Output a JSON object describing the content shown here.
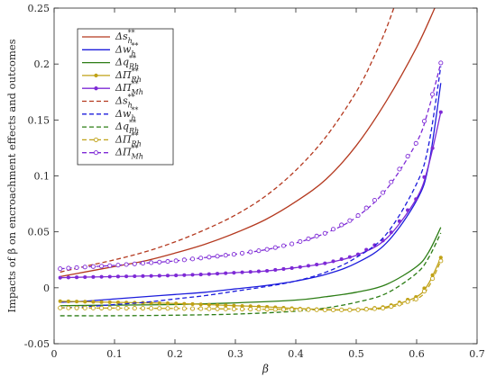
{
  "chart_data": {
    "type": "line",
    "xlabel": "β",
    "ylabel": "Impacts of β on encroachment effects and outcomes",
    "xlim": [
      0,
      0.7
    ],
    "ylim": [
      -0.05,
      0.25
    ],
    "xticks": [
      "0",
      "0.1",
      "0.2",
      "0.3",
      "0.4",
      "0.5",
      "0.6",
      "0.7"
    ],
    "yticks": [
      "-0.05",
      "0",
      "0.05",
      "0.1",
      "0.15",
      "0.2",
      "0.25"
    ],
    "grid": false,
    "legend_position": "top-left",
    "colors": {
      "red": "#b4391f",
      "blue": "#1c1cdc",
      "green": "#2c7d15",
      "gold": "#c0a217",
      "purple": "#7e2ad6"
    },
    "series": [
      {
        "name": "Δs_h^{**}",
        "color": "red",
        "style": "solid",
        "marker": "none",
        "x": [
          0.01,
          0.05,
          0.1,
          0.15,
          0.2,
          0.25,
          0.3,
          0.35,
          0.4,
          0.45,
          0.5,
          0.55,
          0.6,
          0.63,
          0.645
        ],
        "y": [
          0.01,
          0.014,
          0.019,
          0.024,
          0.031,
          0.039,
          0.049,
          0.061,
          0.077,
          0.097,
          0.127,
          0.167,
          0.215,
          0.25,
          0.268
        ]
      },
      {
        "name": "Δw_h^{**}",
        "color": "blue",
        "style": "solid",
        "marker": "none",
        "x": [
          0.01,
          0.05,
          0.1,
          0.15,
          0.2,
          0.25,
          0.3,
          0.35,
          0.4,
          0.45,
          0.5,
          0.55,
          0.6,
          0.62,
          0.64
        ],
        "y": [
          -0.013,
          -0.012,
          -0.01,
          -0.008,
          -0.006,
          -0.004,
          -0.001,
          0.002,
          0.006,
          0.012,
          0.022,
          0.04,
          0.078,
          0.11,
          0.183
        ]
      },
      {
        "name": "Δq_Rh^{**}",
        "color": "green",
        "style": "solid",
        "marker": "none",
        "x": [
          0.01,
          0.1,
          0.2,
          0.3,
          0.4,
          0.45,
          0.5,
          0.55,
          0.6,
          0.62,
          0.64
        ],
        "y": [
          -0.016,
          -0.0155,
          -0.015,
          -0.0135,
          -0.011,
          -0.008,
          -0.004,
          0.003,
          0.019,
          0.032,
          0.054
        ]
      },
      {
        "name": "ΔΠ_Rh^{**}",
        "color": "gold",
        "style": "solid",
        "marker": "dot",
        "x": [
          0.01,
          0.1,
          0.2,
          0.3,
          0.35,
          0.4,
          0.45,
          0.5,
          0.55,
          0.6,
          0.62,
          0.64
        ],
        "y": [
          -0.012,
          -0.013,
          -0.014,
          -0.016,
          -0.017,
          -0.0185,
          -0.0195,
          -0.0195,
          -0.017,
          -0.008,
          0.004,
          0.027
        ]
      },
      {
        "name": "ΔΠ_Mh^{**}",
        "color": "purple",
        "style": "solid",
        "marker": "dot",
        "x": [
          0.01,
          0.05,
          0.1,
          0.15,
          0.2,
          0.25,
          0.3,
          0.35,
          0.4,
          0.45,
          0.5,
          0.55,
          0.6,
          0.62,
          0.64
        ],
        "y": [
          0.009,
          0.0095,
          0.01,
          0.0105,
          0.011,
          0.012,
          0.0135,
          0.015,
          0.018,
          0.022,
          0.029,
          0.044,
          0.08,
          0.11,
          0.157
        ]
      },
      {
        "name": "Δs_h^{**}",
        "color": "red",
        "style": "dashed",
        "marker": "none",
        "x": [
          0.01,
          0.05,
          0.1,
          0.15,
          0.2,
          0.25,
          0.3,
          0.35,
          0.4,
          0.45,
          0.5,
          0.53,
          0.55,
          0.57
        ],
        "y": [
          0.014,
          0.019,
          0.025,
          0.032,
          0.041,
          0.052,
          0.065,
          0.082,
          0.105,
          0.135,
          0.175,
          0.207,
          0.232,
          0.262
        ]
      },
      {
        "name": "Δw_h^{**}",
        "color": "blue",
        "style": "dashed",
        "marker": "none",
        "x": [
          0.01,
          0.05,
          0.1,
          0.15,
          0.2,
          0.25,
          0.3,
          0.35,
          0.4,
          0.45,
          0.5,
          0.55,
          0.6,
          0.62,
          0.64
        ],
        "y": [
          -0.018,
          -0.017,
          -0.015,
          -0.013,
          -0.01,
          -0.007,
          -0.003,
          0.001,
          0.006,
          0.014,
          0.027,
          0.048,
          0.093,
          0.128,
          0.198
        ]
      },
      {
        "name": "Δq_Rh^{**}",
        "color": "green",
        "style": "dashed",
        "marker": "none",
        "x": [
          0.01,
          0.1,
          0.2,
          0.3,
          0.4,
          0.45,
          0.5,
          0.55,
          0.6,
          0.62,
          0.64
        ],
        "y": [
          -0.025,
          -0.025,
          -0.0245,
          -0.0235,
          -0.021,
          -0.018,
          -0.013,
          -0.005,
          0.013,
          0.027,
          0.049
        ]
      },
      {
        "name": "ΔΠ_Rh^{**}",
        "color": "gold",
        "style": "dashed",
        "marker": "circle",
        "x": [
          0.01,
          0.1,
          0.2,
          0.3,
          0.4,
          0.45,
          0.5,
          0.55,
          0.6,
          0.62,
          0.64
        ],
        "y": [
          -0.018,
          -0.0182,
          -0.0185,
          -0.019,
          -0.0195,
          -0.0198,
          -0.0198,
          -0.018,
          -0.01,
          0.001,
          0.024
        ]
      },
      {
        "name": "ΔΠ_Mh^{**}",
        "color": "purple",
        "style": "dashed",
        "marker": "circle",
        "x": [
          0.01,
          0.05,
          0.1,
          0.15,
          0.2,
          0.25,
          0.3,
          0.35,
          0.4,
          0.45,
          0.5,
          0.55,
          0.6,
          0.62,
          0.64
        ],
        "y": [
          0.017,
          0.0185,
          0.02,
          0.022,
          0.024,
          0.027,
          0.03,
          0.034,
          0.04,
          0.049,
          0.063,
          0.088,
          0.13,
          0.16,
          0.201
        ]
      }
    ]
  }
}
